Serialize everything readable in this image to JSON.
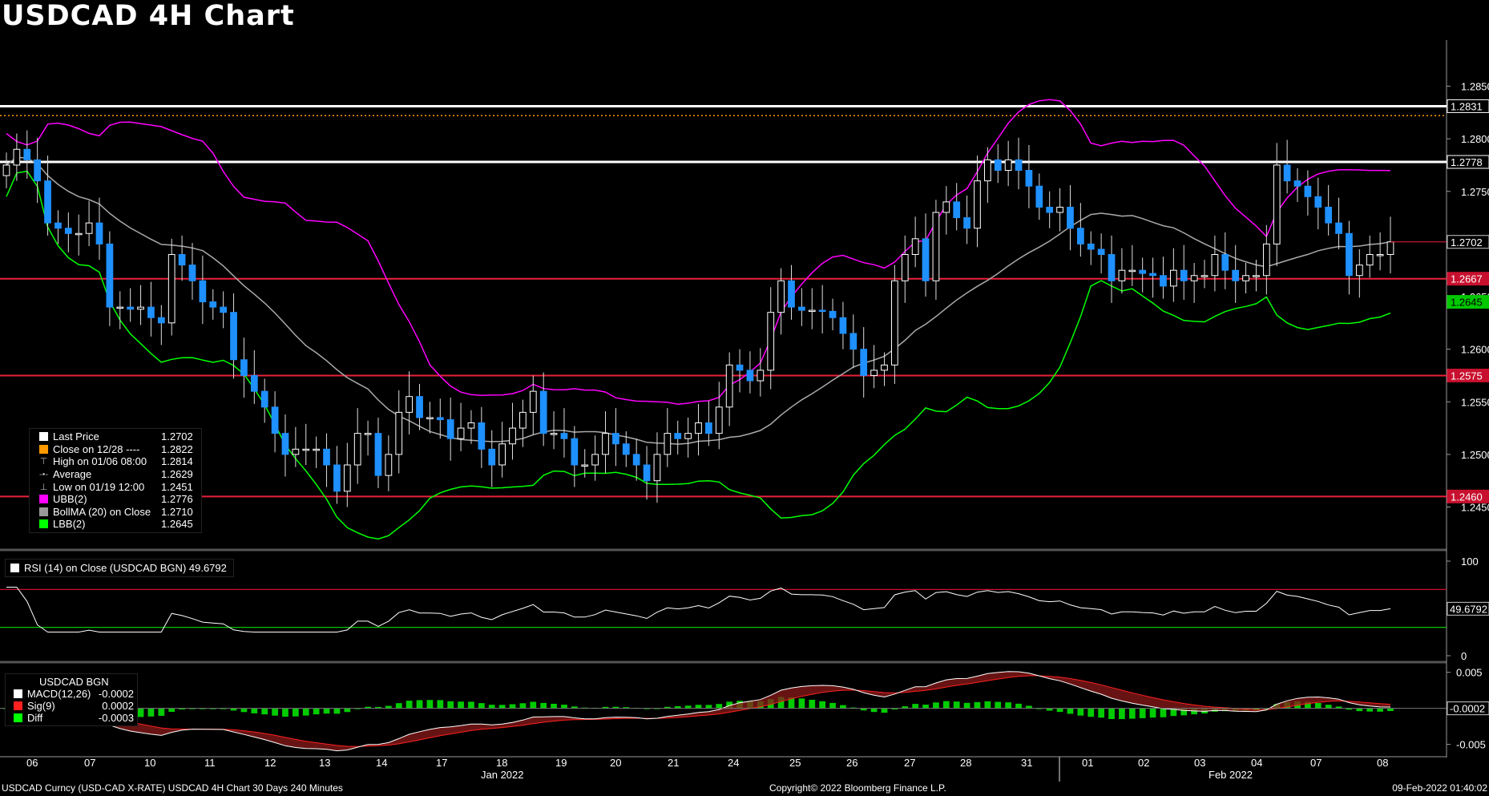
{
  "title": "USDCAD 4H Chart",
  "colors": {
    "up_candle": "#ffffff",
    "down_candle": "#1e90ff",
    "ubb": "#ff00ff",
    "lbb": "#00ff00",
    "bollma": "#aaaaaa",
    "support_line": "#e8223a",
    "resistance_line": "#ffffff",
    "close_line": "#ff9900"
  },
  "legend": [
    {
      "label": "Last Price",
      "value": "1.2702",
      "color": "#ffffff",
      "symbol": "box"
    },
    {
      "label": "Close on 12/28 ----",
      "value": "1.2822",
      "color": "#ff9900",
      "symbol": "box"
    },
    {
      "label": "High on 01/06 08:00",
      "value": "1.2814",
      "symbol_char": "⊤"
    },
    {
      "label": "Average",
      "value": "1.2629",
      "symbol_char": "-•-"
    },
    {
      "label": "Low on 01/19 12:00",
      "value": "1.2451",
      "symbol_char": "⊥"
    },
    {
      "label": "UBB(2)",
      "value": "1.2776",
      "color": "#ff00ff",
      "symbol": "box"
    },
    {
      "label": "BollMA (20)  on Close",
      "value": "1.2710",
      "color": "#999999",
      "symbol": "box"
    },
    {
      "label": "LBB(2)",
      "value": "1.2645",
      "color": "#00ff00",
      "symbol": "box"
    }
  ],
  "rsi_label": "RSI (14)  on Close (USDCAD BGN) 49.6792",
  "macd_label": {
    "header": "USDCAD BGN",
    "rows": [
      {
        "label": "MACD(12,26)",
        "value": "-0.0002",
        "color": "#ffffff"
      },
      {
        "label": "Sig(9)",
        "value": "0.0002",
        "color": "#ff2020"
      },
      {
        "label": "Diff",
        "value": "-0.0003",
        "color": "#00ff00"
      }
    ]
  },
  "footer": {
    "left": "USDCAD Curncy (USD-CAD X-RATE) USDCAD 4H Chart 30 Days 240 Minutes",
    "center": "Copyright© 2022 Bloomberg Finance L.P.",
    "right": "09-Feb-2022 01:40:02"
  },
  "chart_data": [
    {
      "type": "candlestick",
      "title": "USDCAD 4H Chart",
      "x_tick_labels": [
        "06",
        "07",
        "10",
        "11",
        "12",
        "13",
        "14",
        "17",
        "18",
        "19",
        "20",
        "21",
        "24",
        "25",
        "26",
        "27",
        "28",
        "31",
        "01",
        "02",
        "03",
        "04",
        "07",
        "08"
      ],
      "x_group_labels": [
        "Jan 2022",
        "Feb 2022"
      ],
      "ylim": [
        1.241,
        1.289
      ],
      "y_ticks": [
        "1.2450",
        "1.2500",
        "1.2550",
        "1.2600",
        "1.2650",
        "1.2700",
        "1.2750",
        "1.2800",
        "1.2850"
      ],
      "price_tags": [
        {
          "value": "1.2831",
          "kind": "resistance"
        },
        {
          "value": "1.2778",
          "kind": "resistance"
        },
        {
          "value": "1.2702",
          "kind": "last"
        },
        {
          "value": "1.2667",
          "kind": "support"
        },
        {
          "value": "1.2645",
          "kind": "lbb"
        },
        {
          "value": "1.2575",
          "kind": "support"
        },
        {
          "value": "1.2460",
          "kind": "support"
        }
      ],
      "horizontal_lines": [
        {
          "value": 1.2831,
          "kind": "resistance"
        },
        {
          "value": 1.2778,
          "kind": "resistance"
        },
        {
          "value": 1.2822,
          "kind": "close"
        },
        {
          "value": 1.2667,
          "kind": "support"
        },
        {
          "value": 1.2575,
          "kind": "support"
        },
        {
          "value": 1.246,
          "kind": "support"
        }
      ],
      "close": [
        1.2775,
        1.279,
        1.278,
        1.276,
        1.272,
        1.2715,
        1.271,
        1.271,
        1.272,
        1.27,
        1.264,
        1.264,
        1.2638,
        1.264,
        1.263,
        1.2625,
        1.269,
        1.268,
        1.2665,
        1.2645,
        1.264,
        1.2635,
        1.259,
        1.2575,
        1.256,
        1.2545,
        1.252,
        1.25,
        1.2505,
        1.2505,
        1.2505,
        1.249,
        1.2465,
        1.249,
        1.252,
        1.252,
        1.248,
        1.25,
        1.254,
        1.2555,
        1.2535,
        1.2535,
        1.2533,
        1.2515,
        1.2525,
        1.253,
        1.2505,
        1.249,
        1.251,
        1.2525,
        1.254,
        1.256,
        1.252,
        1.252,
        1.2515,
        1.249,
        1.249,
        1.25,
        1.252,
        1.251,
        1.25,
        1.249,
        1.2475,
        1.25,
        1.252,
        1.2515,
        1.252,
        1.253,
        1.252,
        1.2545,
        1.2585,
        1.258,
        1.257,
        1.258,
        1.2635,
        1.2665,
        1.264,
        1.2637,
        1.2637,
        1.2636,
        1.263,
        1.2615,
        1.26,
        1.2575,
        1.258,
        1.2585,
        1.2665,
        1.269,
        1.2705,
        1.2665,
        1.273,
        1.274,
        1.2725,
        1.2715,
        1.276,
        1.278,
        1.277,
        1.278,
        1.277,
        1.2755,
        1.2735,
        1.273,
        1.2735,
        1.2715,
        1.27,
        1.2695,
        1.269,
        1.2665,
        1.2675,
        1.2675,
        1.2672,
        1.267,
        1.266,
        1.2675,
        1.2665,
        1.267,
        1.267,
        1.269,
        1.2675,
        1.2665,
        1.267,
        1.267,
        1.27,
        1.2775,
        1.276,
        1.2755,
        1.2745,
        1.2735,
        1.272,
        1.271,
        1.267,
        1.268,
        1.269,
        1.269,
        1.2702
      ],
      "series": [
        {
          "name": "UBB(2)",
          "last": 1.2776
        },
        {
          "name": "BollMA (20)  on Close",
          "last": 1.271
        },
        {
          "name": "LBB(2)",
          "last": 1.2645
        }
      ]
    },
    {
      "type": "line",
      "title": "RSI (14)  on Close (USDCAD BGN)",
      "ylim": [
        0,
        100
      ],
      "y_ticks": [
        "100",
        "0"
      ],
      "last_value_tag": "49.6792",
      "overbought": 70,
      "oversold": 30
    },
    {
      "type": "area",
      "title": "USDCAD BGN",
      "ylim": [
        -0.0056,
        0.0053
      ],
      "y_ticks": [
        "0.005",
        "-0.005"
      ],
      "last_value_tag": "-0.0002",
      "zero_line": 0
    }
  ]
}
